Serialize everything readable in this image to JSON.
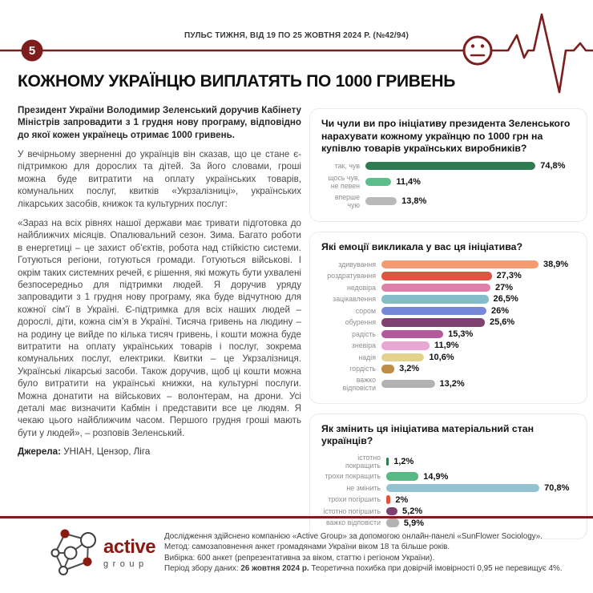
{
  "header": {
    "page_number": "5",
    "pulse_label": "ПУЛЬС ТИЖНЯ, ВІД 19 ПО 25 ЖОВТНЯ 2024 Р. (№42/94)"
  },
  "title": "КОЖНОМУ УКРАЇНЦЮ ВИПЛАТЯТЬ ПО 1000 ГРИВЕНЬ",
  "article": {
    "lead": "Президент України Володимир Зеленський доручив Кабінету Міністрів запровадити з 1 грудня нову програму, відповідно до якої кожен українець отримає 1000 гривень.",
    "para2": "У вечірньому зверненні до українців він сказав, що це стане є-підтримкою для дорослих та дітей. За його словами, гроші можна буде витратити на оплату українських товарів, комунальних послуг, квитків «Укрзалізниці», українських лікарських засобів, книжок та культурних послуг:",
    "quote": "«Зараз на всіх рівнях нашої держави має тривати підготовка до найближчих місяців. Опалювальний сезон. Зима. Багато роботи в енергетиці – це захист об’єктів, робота над стійкістю системи. Готуються регіони, готуються громади. Готуються військові. І окрім таких системних речей, є рішення, які можуть бути ухвалені безпосередньо для підтримки людей. Я доручив уряду запровадити з 1 грудня нову програму, яка буде відчутною для кожної сім’ї в Україні. Є-підтримка для всіх наших людей – дорослі, діти, кожна сім’я в Україні. Тисяча гривень на людину – на родину це вийде по кілька тисяч гривень, і кошти можна буде витратити на оплату українських товарів і послуг, зокрема комунальних послуг, електрики. Квитки – це Укрзалізниця. Українські лікарські засоби. Також доручив, щоб ці кошти можна було витратити на українські книжки, на культурні послуги. Можна донатити на військових – волонтерам, на дрони. Усі деталі має визначити Кабмін і представити все це людям. Я чекаю цього найближчим часом. Першого грудня гроші мають бути у людей», – розповів Зеленський.",
    "sources_label": "Джерела:",
    "sources_text": " УНІАН, Цензор, Ліга"
  },
  "chart_data": [
    {
      "type": "bar",
      "orientation": "horizontal",
      "title": "Чи чули ви про ініціативу президента Зеленського нарахувати кожному українцю по 1000 грн на купівлю товарів українських виробників?",
      "categories": [
        "так, чув",
        "щось чув,\nне певен",
        "вперше чую"
      ],
      "values": [
        74.8,
        11.4,
        13.8
      ],
      "value_labels": [
        "74,8%",
        "11,4%",
        "13,8%"
      ],
      "colors": [
        "#2E7B52",
        "#5BBE8B",
        "#B9B9B9"
      ],
      "xlim": [
        0,
        100
      ],
      "grid": false,
      "legend": false
    },
    {
      "type": "bar",
      "orientation": "horizontal",
      "title": "Які емоції викликала у вас ця ініціатива?",
      "categories": [
        "здивування",
        "роздратування",
        "недовіра",
        "зацікавлення",
        "сором",
        "обурення",
        "радість",
        "зневіра",
        "надія",
        "гордість",
        "важко відповісти"
      ],
      "values": [
        38.9,
        27.3,
        27,
        26.5,
        26,
        25.6,
        15.3,
        11.9,
        10.6,
        3.2,
        13.2
      ],
      "value_labels": [
        "38,9%",
        "27,3%",
        "27%",
        "26,5%",
        "26%",
        "25,6%",
        "15,3%",
        "11,9%",
        "10,6%",
        "3,2%",
        "13,2%"
      ],
      "colors": [
        "#F49B72",
        "#DF5441",
        "#E17FAB",
        "#85BCCC",
        "#7487D9",
        "#7D4270",
        "#B2599C",
        "#E9A8D4",
        "#E3D28E",
        "#BF8C45",
        "#B3B3B3"
      ],
      "xlim": [
        0,
        100
      ],
      "grid": false,
      "legend": false
    },
    {
      "type": "bar",
      "orientation": "horizontal",
      "title": "Як змінить ця ініціатива матеріальний стан українців?",
      "categories": [
        "істотно покращить",
        "трохи покращить",
        "не змінить",
        "трохи погіршить",
        "істотно погіршить",
        "важко відповісти"
      ],
      "values": [
        1.2,
        14.9,
        70.8,
        2,
        5.2,
        5.9
      ],
      "value_labels": [
        "1,2%",
        "14,9%",
        "70,8%",
        "2%",
        "5,2%",
        "5,9%"
      ],
      "colors": [
        "#2E7B52",
        "#57B983",
        "#95C2D0",
        "#E0543E",
        "#7D4270",
        "#B3B3B3"
      ],
      "xlim": [
        0,
        100
      ],
      "grid": false,
      "legend": false
    }
  ],
  "footer": {
    "logo_primary": "active",
    "logo_secondary": "group",
    "lines": [
      "Дослідження здійснено компанією «Active Group» за допомогою онлайн-панелі «SunFlower Sociology».",
      "Метод: самозаповнення анкет громадянами України віком 18 та більше років.",
      "Вибірка: 600 анкет (репрезентативна за віком, статтю і регіоном України)."
    ],
    "line4": {
      "prefix": "Період збору даних: ",
      "bold": "26 жовтня 2024 р.",
      "suffix": " Теоретична похибка при довірчій імовірності 0,95 не перевищує 4%."
    }
  },
  "colors": {
    "accent_maroon": "#7E1D1D",
    "logo_red": "#8B1A12"
  }
}
